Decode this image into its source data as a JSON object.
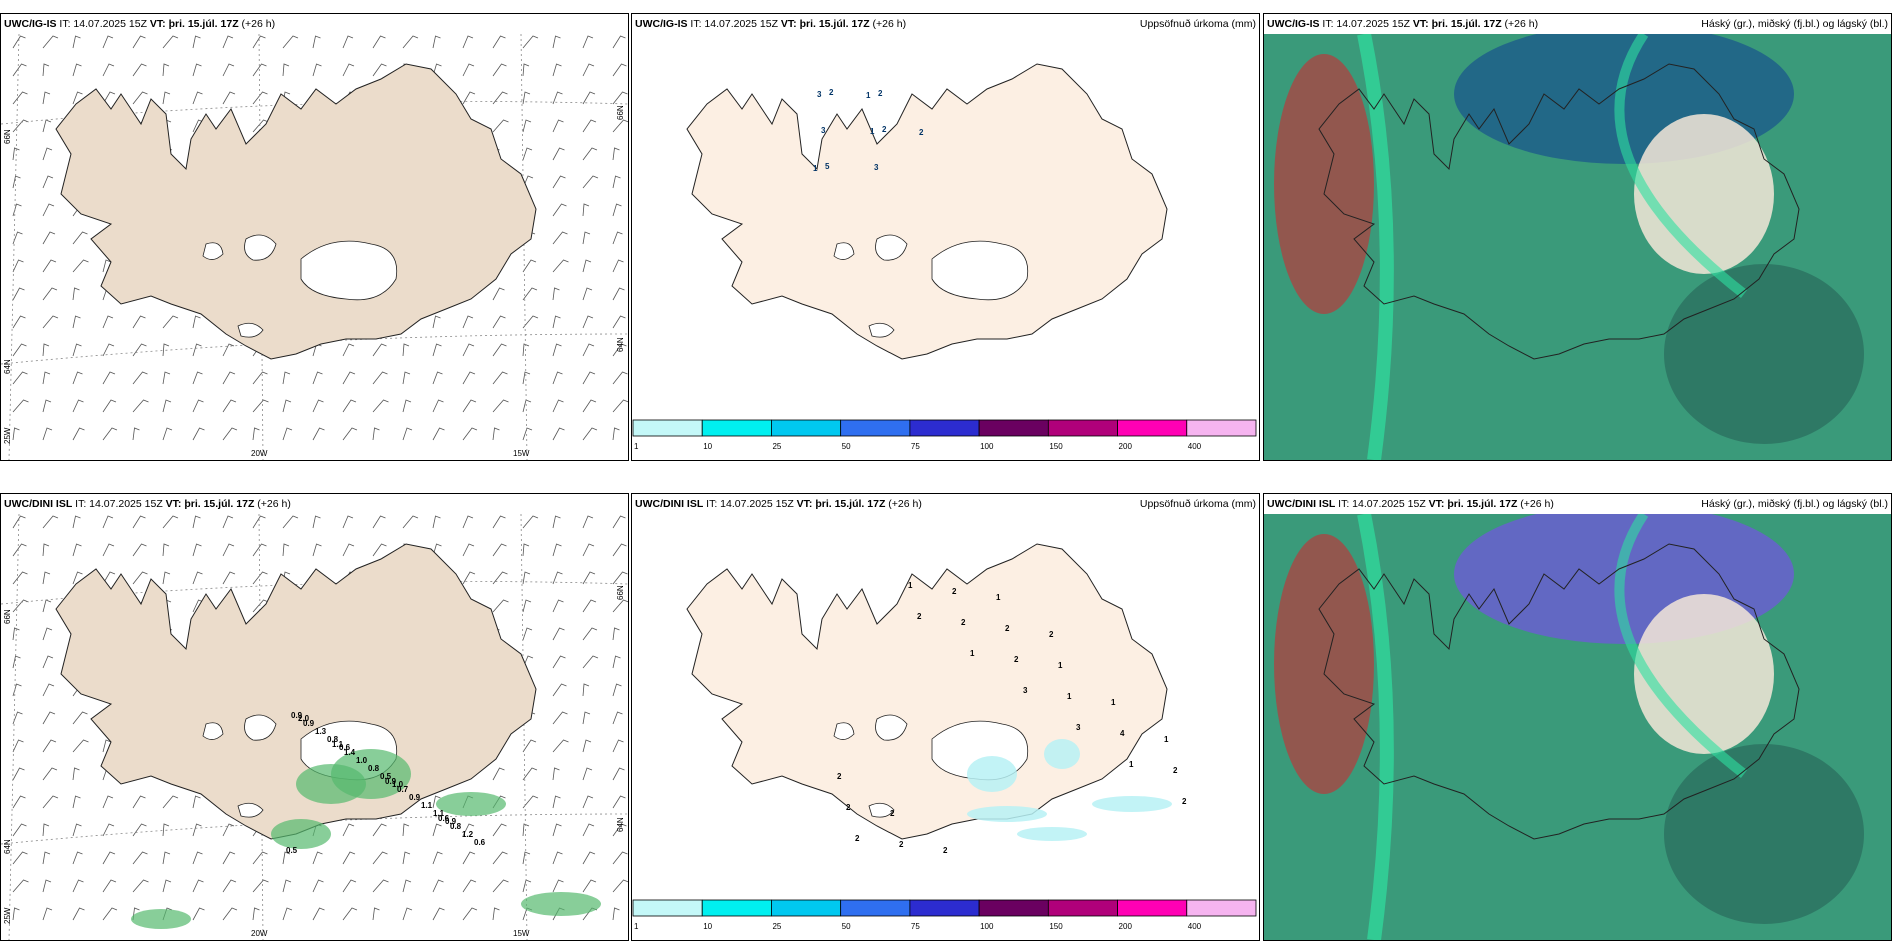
{
  "panels": [
    {
      "model": "UWC/IG-IS",
      "it": "IT: 14.07.2025 15Z",
      "vt": "VT: þri. 15.júl. 17Z",
      "lead": "(+26 h)",
      "title": "",
      "kind": "wind"
    },
    {
      "model": "UWC/IG-IS",
      "it": "IT: 14.07.2025 15Z",
      "vt": "VT: þri. 15.júl. 17Z",
      "lead": "(+26 h)",
      "title": "Uppsöfnuð úrkoma (mm)",
      "kind": "precip"
    },
    {
      "model": "UWC/IG-IS",
      "it": "IT: 14.07.2025 15Z",
      "vt": "VT: þri. 15.júl. 17Z",
      "lead": "(+26 h)",
      "title": "Háský (gr.), miðský (fj.bl.) og lágský (bl.)",
      "kind": "cloud"
    },
    {
      "model": "UWC/DINI ISL",
      "it": "IT: 14.07.2025 15Z",
      "vt": "VT: þri. 15.júl. 17Z",
      "lead": "(+26 h)",
      "title": "",
      "kind": "wind"
    },
    {
      "model": "UWC/DINI ISL",
      "it": "IT: 14.07.2025 15Z",
      "vt": "VT: þri. 15.júl. 17Z",
      "lead": "(+26 h)",
      "title": "Uppsöfnuð úrkoma (mm)",
      "kind": "precip"
    },
    {
      "model": "UWC/DINI ISL",
      "it": "IT: 14.07.2025 15Z",
      "vt": "VT: þri. 15.júl. 17Z",
      "lead": "(+26 h)",
      "title": "Háský (gr.), miðský (fj.bl.) og lágský (bl.)",
      "kind": "cloud"
    }
  ],
  "axis_labels": {
    "lat66": "66N",
    "lat64": "64N",
    "lon20": "20W",
    "lon15": "15W",
    "lon25": "25W"
  },
  "colorbar": {
    "labels": [
      "1",
      "10",
      "25",
      "50",
      "75",
      "100",
      "150",
      "200",
      "400"
    ],
    "colors": [
      "#c4f8f8",
      "#00f0f0",
      "#00c8f0",
      "#2f6ff0",
      "#2c2cd0",
      "#6a0060",
      "#b0007a",
      "#ff00b4",
      "#f6b4f0"
    ]
  },
  "precip_top_values": [
    "2",
    "2",
    "5",
    "2",
    "3",
    "3",
    "3",
    "1",
    "1",
    "1",
    "2"
  ],
  "precip_bottom_values": [
    "2",
    "1",
    "3",
    "3",
    "1",
    "2",
    "2",
    "1",
    "2",
    "2",
    "1",
    "4",
    "2",
    "2",
    "2",
    "2",
    "2",
    "1",
    "1",
    "1",
    "2",
    "2",
    "2",
    "1",
    "2"
  ],
  "wind_bottom_values": [
    "1.1",
    "0.9",
    "0.6",
    "0.9",
    "1.4",
    "0.7",
    "0.8",
    "0.9",
    "1.0",
    "0.9",
    "1.2",
    "1.3",
    "0.8",
    "1.1",
    "0.6",
    "0.8",
    "0.5",
    "1.1",
    "0.5",
    "0.6",
    "1.0",
    "0.9",
    "2.0"
  ],
  "colors": {
    "land_wind": "#ebdccb",
    "land_precip": "#fcefe3",
    "cloud_green": "#3a9a7a",
    "cloud_dark": "#2a6b5c",
    "cloud_blue": "#1f5f8a",
    "cloud_violet": "#6a5fd0",
    "cloud_red": "#b04040"
  }
}
